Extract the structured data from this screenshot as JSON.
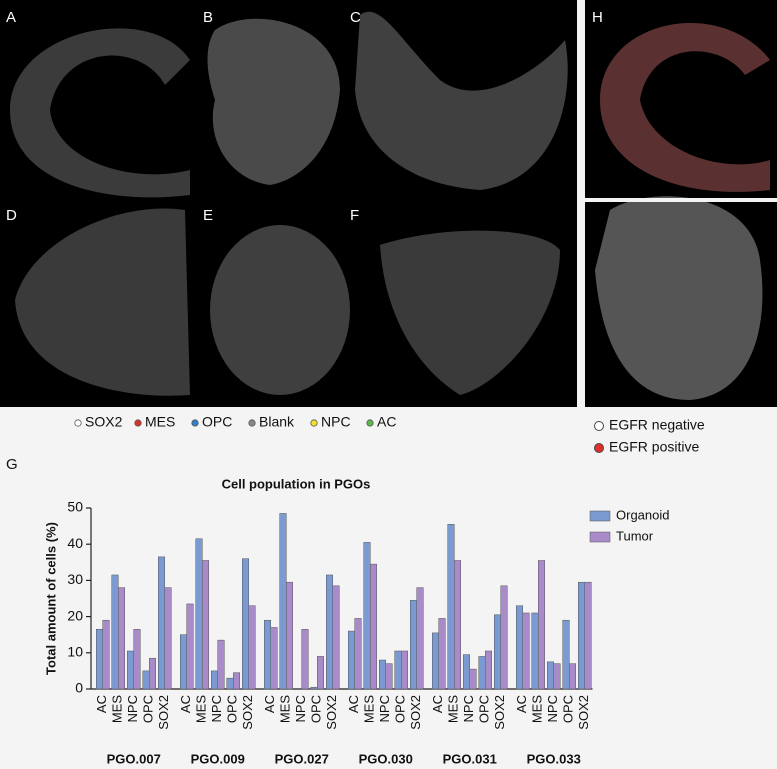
{
  "panels": [
    "A",
    "B",
    "C",
    "D",
    "E",
    "F",
    "H"
  ],
  "cell_legend": [
    {
      "label": "SOX2",
      "color": "#ffffff"
    },
    {
      "label": "MES",
      "color": "#e0302a"
    },
    {
      "label": "OPC",
      "color": "#2f7fc8"
    },
    {
      "label": "Blank",
      "color": "#888888"
    },
    {
      "label": "NPC",
      "color": "#f2e12a"
    },
    {
      "label": "AC",
      "color": "#5cb848"
    }
  ],
  "egfr_legend": [
    {
      "label": "EGFR negative",
      "color": "#ffffff"
    },
    {
      "label": "EGFR positive",
      "color": "#e0302a"
    }
  ],
  "chart_label": "G",
  "chart_data": {
    "type": "bar",
    "title": "Cell population in PGOs",
    "y_label": "Total amount of cells (%)",
    "groups": [
      "PGO.007",
      "PGO.009",
      "PGO.027",
      "PGO.030",
      "PGO.031",
      "PGO.033"
    ],
    "categories": [
      "AC",
      "MES",
      "NPC",
      "OPC",
      "SOX2",
      "AC",
      "MES",
      "NPC",
      "OPC",
      "SOX2",
      "AC",
      "MES",
      "NPC",
      "OPC",
      "SOX2",
      "AC",
      "MES",
      "NPC",
      "OPC",
      "SOX2",
      "AC",
      "MES",
      "NPC",
      "OPC",
      "SOX2",
      "AC",
      "MES",
      "NPC",
      "OPC",
      "SOX2"
    ],
    "series": [
      {
        "name": "Organoid",
        "color": "#7b9ad2",
        "values": [
          16.5,
          31.5,
          10.5,
          5,
          36.5,
          15,
          41.5,
          5,
          3,
          36,
          19,
          48.5,
          0,
          0.5,
          31.5,
          16,
          40.5,
          8,
          10.5,
          24.5,
          15.5,
          45.5,
          9.5,
          9,
          20.5,
          23,
          21,
          7.5,
          19,
          29.5
        ]
      },
      {
        "name": "Tumor",
        "color": "#a88bc8",
        "values": [
          19,
          28,
          16.5,
          8.5,
          28,
          23.5,
          35.5,
          13.5,
          4.5,
          23,
          17,
          29.5,
          16.5,
          9,
          28.5,
          19.5,
          34.5,
          7,
          10.5,
          28,
          19.5,
          35.5,
          5.5,
          10.5,
          28.5,
          21,
          35.5,
          7,
          7,
          29.5
        ]
      }
    ],
    "ylim": [
      0,
      50
    ],
    "yticks": [
      0,
      10,
      20,
      30,
      40,
      50
    ],
    "grid": false,
    "legend": "top-right"
  }
}
